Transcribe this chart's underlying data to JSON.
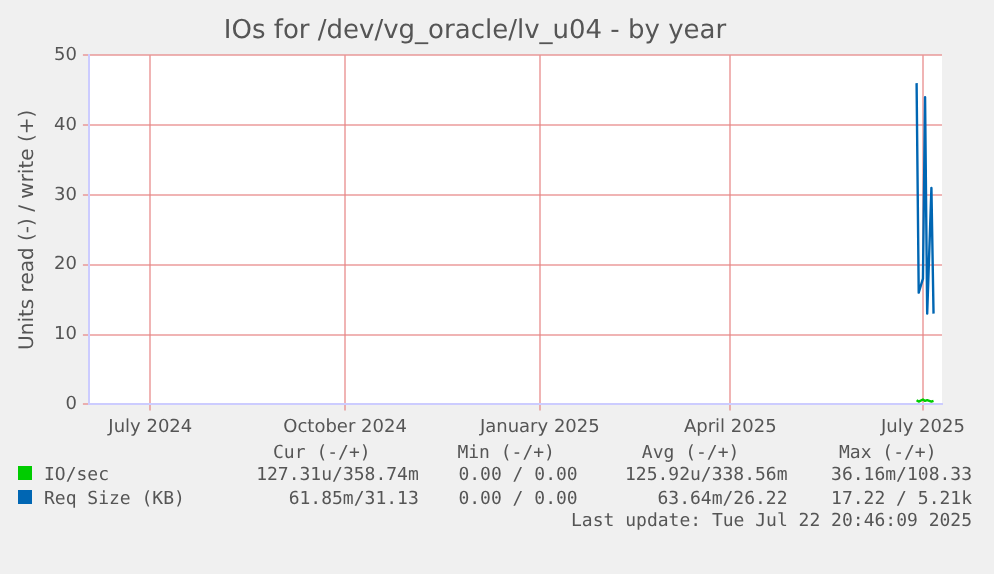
{
  "chart_data": {
    "type": "line",
    "title": "IOs for /dev/vg_oracle/lv_u04 - by year",
    "ylabel": "Units read (-) / write (+)",
    "x": [
      "2025-06-28",
      "2025-06-29",
      "2025-07-01",
      "2025-07-02",
      "2025-07-03",
      "2025-07-05",
      "2025-07-06"
    ],
    "series": [
      {
        "name": "IO/sec",
        "color": "#00cc00",
        "values": [
          0.6,
          0.4,
          0.7,
          0.5,
          0.6,
          0.4,
          0.5
        ]
      },
      {
        "name": "Req Size (KB)",
        "color": "#0066b3",
        "values": [
          46,
          16,
          18,
          44,
          13,
          31,
          13
        ]
      }
    ],
    "xlim": [
      "2024-06-02",
      "2025-07-10"
    ],
    "xticks": [
      {
        "value": "2024-07-01",
        "label": "July 2024"
      },
      {
        "value": "2024-10-01",
        "label": "October 2024"
      },
      {
        "value": "2025-01-01",
        "label": "January 2025"
      },
      {
        "value": "2025-04-01",
        "label": "April 2025"
      },
      {
        "value": "2025-07-01",
        "label": "July 2025"
      }
    ],
    "ylim": [
      0,
      50
    ],
    "yticks": [
      0,
      10,
      20,
      30,
      40,
      50
    ],
    "grid": true,
    "legend": "bottom",
    "marker": "none",
    "line_style": "solid",
    "annotations": [
      "Cur (-/+)",
      "Min (-/+)",
      "Avg (-/+)",
      "Max (-/+)",
      "127.31u/358.74m",
      "0.00 / 0.00",
      "125.92u/338.56m",
      "36.16m/108.33",
      "61.85m/31.13",
      "0.00 / 0.00",
      "63.64m/26.22",
      "17.22 / 5.21k",
      "Last update: Tue Jul 22 20:46:09 2025"
    ]
  }
}
